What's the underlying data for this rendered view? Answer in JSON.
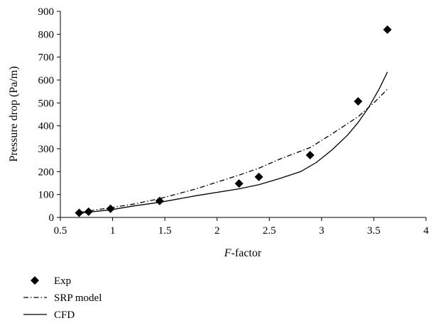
{
  "chart_data": {
    "type": "line",
    "title": "",
    "xlabel": {
      "italic": "F",
      "rest": "-factor"
    },
    "ylabel": "Pressure drop (Pa/m)",
    "xlim": [
      0.5,
      4
    ],
    "ylim": [
      0,
      900
    ],
    "xticks": [
      "0.5",
      "1",
      "1.5",
      "2",
      "2.5",
      "3",
      "3.5",
      "4"
    ],
    "yticks": [
      "0",
      "100",
      "200",
      "300",
      "400",
      "500",
      "600",
      "700",
      "800",
      "900"
    ],
    "grid": false,
    "legend_position": "bottom-left",
    "series": [
      {
        "name": "Exp",
        "style": "marker-diamond",
        "color": "#000000",
        "x": [
          0.68,
          0.77,
          0.98,
          1.45,
          2.21,
          2.4,
          2.89,
          3.35,
          3.63
        ],
        "y": [
          20,
          25,
          38,
          72,
          148,
          177,
          272,
          507,
          820
        ]
      },
      {
        "name": "SRP model",
        "style": "dash-dot",
        "color": "#000000",
        "x": [
          0.68,
          0.77,
          0.98,
          1.2,
          1.45,
          1.8,
          2.21,
          2.4,
          2.6,
          2.89,
          3.1,
          3.35,
          3.5,
          3.63
        ],
        "y": [
          22,
          28,
          42,
          58,
          82,
          125,
          185,
          215,
          255,
          305,
          365,
          440,
          500,
          560
        ]
      },
      {
        "name": "CFD",
        "style": "solid",
        "color": "#000000",
        "x": [
          0.68,
          0.77,
          0.98,
          1.2,
          1.45,
          1.8,
          2.21,
          2.4,
          2.6,
          2.8,
          2.95,
          3.1,
          3.25,
          3.35,
          3.45,
          3.55,
          3.63
        ],
        "y": [
          18,
          23,
          33,
          50,
          66,
          95,
          125,
          143,
          170,
          200,
          240,
          295,
          360,
          415,
          480,
          560,
          635
        ]
      }
    ]
  }
}
